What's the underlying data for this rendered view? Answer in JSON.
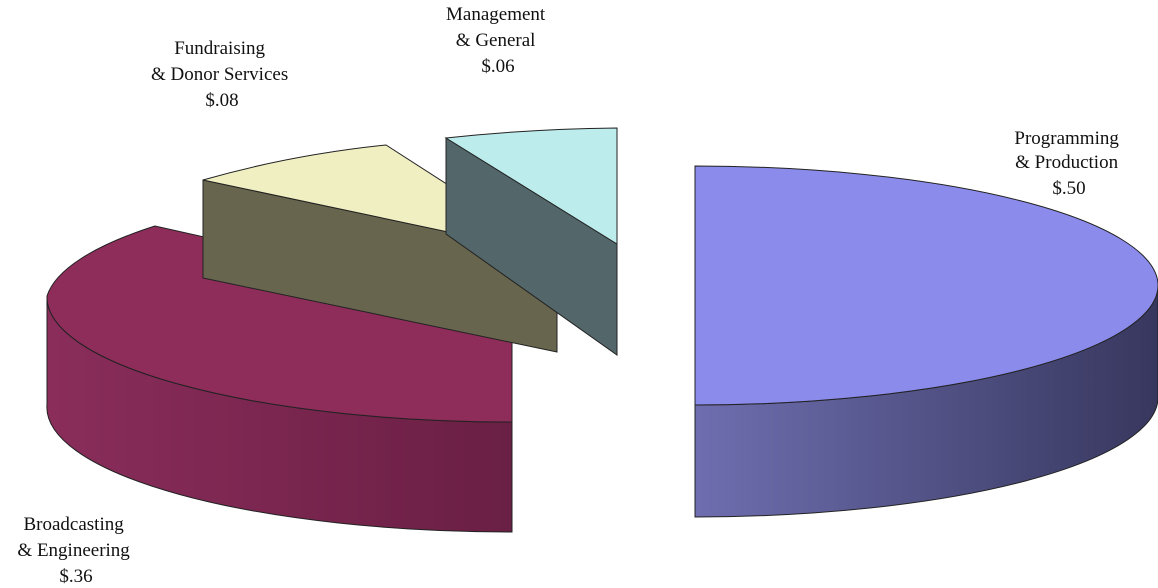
{
  "chart_data": {
    "type": "pie",
    "title": "",
    "style": "3d-exploded",
    "slices": [
      {
        "label_lines": [
          "Programming",
          "& Production"
        ],
        "value_label": "$.50",
        "value": 0.5,
        "color": "#8b8bec"
      },
      {
        "label_lines": [
          "Broadcasting",
          "& Engineering"
        ],
        "value_label": "$.36",
        "value": 0.36,
        "color": "#8e2c5a"
      },
      {
        "label_lines": [
          "Fundraising",
          "& Donor Services"
        ],
        "value_label": "$.08",
        "value": 0.08,
        "color": "#f0efc2"
      },
      {
        "label_lines": [
          "Management",
          "& General"
        ],
        "value_label": "$.06",
        "value": 0.06,
        "color": "#bcecec"
      }
    ]
  }
}
